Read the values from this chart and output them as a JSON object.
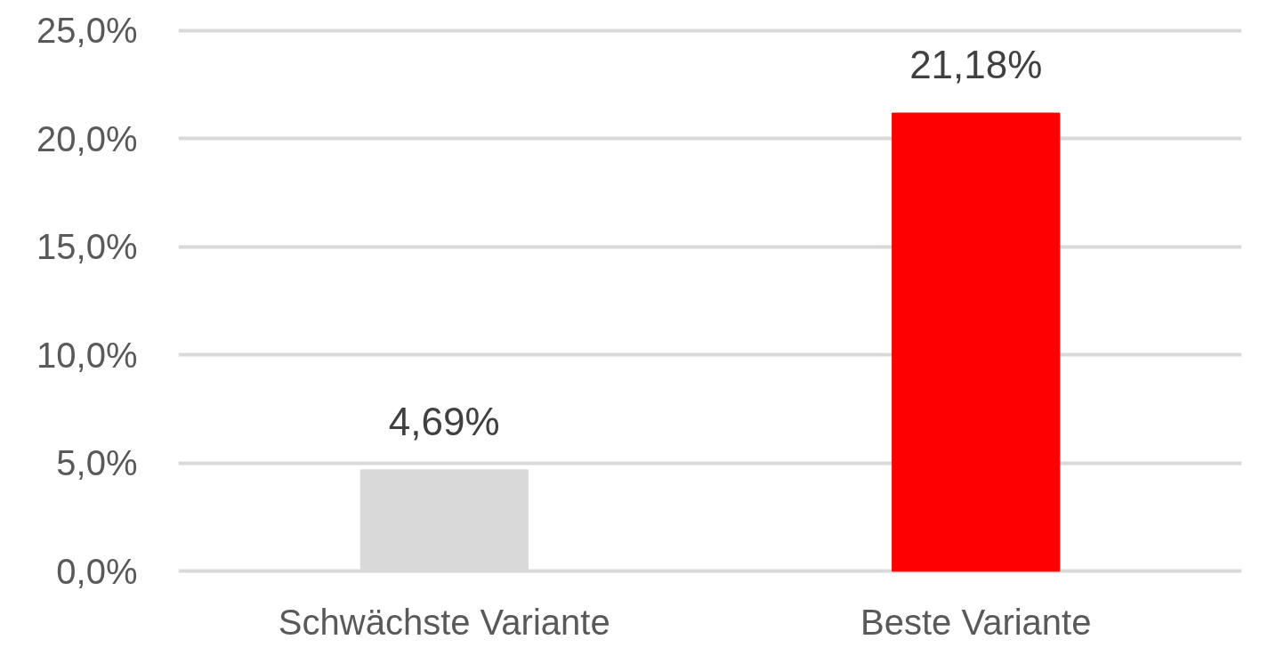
{
  "chart_data": {
    "type": "bar",
    "categories": [
      "Schwächste Variante",
      "Beste Variante"
    ],
    "values": [
      4.69,
      21.18
    ],
    "colors": [
      "#d9d9d9",
      "#ff0000"
    ],
    "value_labels": [
      "4,69%",
      "21,18%"
    ],
    "ylim": [
      0,
      25
    ],
    "yticks": [
      {
        "value": 0,
        "label": "0,0%"
      },
      {
        "value": 5,
        "label": "5,0%"
      },
      {
        "value": 10,
        "label": "10,0%"
      },
      {
        "value": 15,
        "label": "15,0%"
      },
      {
        "value": 20,
        "label": "20,0%"
      },
      {
        "value": 25,
        "label": "25,0%"
      }
    ],
    "grid": "y"
  }
}
